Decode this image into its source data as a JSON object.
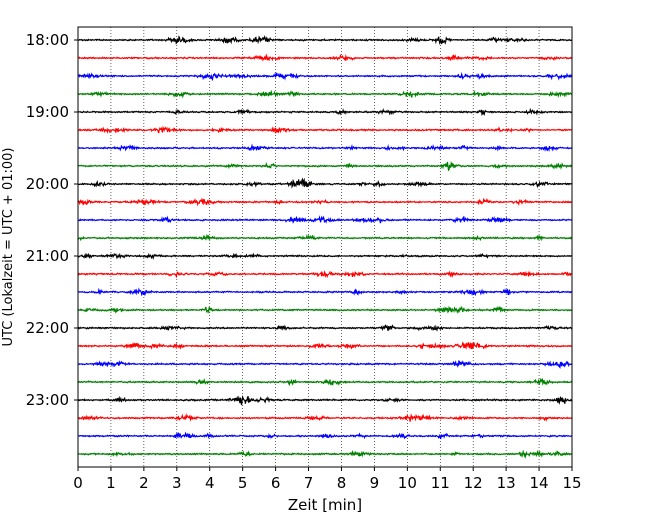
{
  "chart_data": {
    "type": "line",
    "title": "",
    "xlabel": "Zeit  [min]",
    "ylabel": "UTC (Lokalzeit = UTC + 01:00)",
    "xlim": [
      0,
      15
    ],
    "x_ticks": [
      "0",
      "1",
      "2",
      "3",
      "4",
      "5",
      "6",
      "7",
      "8",
      "9",
      "10",
      "11",
      "12",
      "13",
      "14",
      "15"
    ],
    "y_ticks": [
      "18:00",
      "19:00",
      "20:00",
      "21:00",
      "22:00",
      "23:00"
    ],
    "grid": "vertical dotted lines at each minute",
    "traces_per_hour": 4,
    "trace_minutes": 15,
    "trace_colors": [
      "#000000",
      "#ff0000",
      "#0000ff",
      "#008000"
    ],
    "traces": [
      {
        "start": "18:00"
      },
      {
        "start": "18:15"
      },
      {
        "start": "18:30"
      },
      {
        "start": "18:45"
      },
      {
        "start": "19:00"
      },
      {
        "start": "19:15"
      },
      {
        "start": "19:30"
      },
      {
        "start": "19:45"
      },
      {
        "start": "20:00"
      },
      {
        "start": "20:15"
      },
      {
        "start": "20:30"
      },
      {
        "start": "20:45"
      },
      {
        "start": "21:00"
      },
      {
        "start": "21:15"
      },
      {
        "start": "21:30"
      },
      {
        "start": "21:45"
      },
      {
        "start": "22:00"
      },
      {
        "start": "22:15"
      },
      {
        "start": "22:30"
      },
      {
        "start": "22:45"
      },
      {
        "start": "23:00"
      },
      {
        "start": "23:15"
      },
      {
        "start": "23:30"
      },
      {
        "start": "23:45"
      }
    ]
  }
}
